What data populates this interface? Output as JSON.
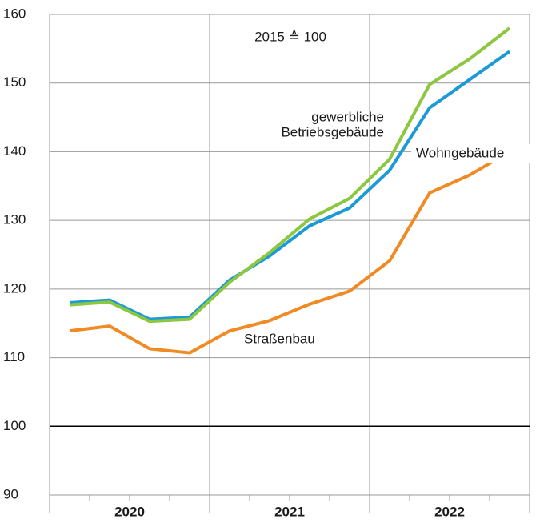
{
  "chart_data": {
    "type": "line",
    "annotation": "2015 ≙ 100",
    "categories": [
      null,
      null,
      null,
      null,
      null,
      null,
      null,
      null,
      null,
      null,
      null,
      null
    ],
    "years": [
      "2020",
      "2021",
      "2022"
    ],
    "ylim": [
      90,
      160
    ],
    "yticks": [
      90,
      100,
      110,
      120,
      130,
      140,
      150,
      160
    ],
    "baseline": 100,
    "grid": true,
    "series": [
      {
        "name": "Straßenbau",
        "color": "#f08a24",
        "values": [
          113.9,
          114.6,
          111.3,
          110.7,
          113.9,
          115.4,
          117.8,
          119.7,
          124.1,
          134.0,
          136.6,
          140.0
        ]
      },
      {
        "name": "Wohngebäude",
        "color": "#1b9ad6",
        "values": [
          118.0,
          118.4,
          115.6,
          115.9,
          121.3,
          124.8,
          129.2,
          131.8,
          137.3,
          146.4,
          150.5,
          154.6
        ]
      },
      {
        "label_lines": [
          "gewerbliche",
          "Betriebsgebäude"
        ],
        "color": "#8dc63f",
        "values": [
          117.7,
          118.1,
          115.3,
          115.6,
          121.0,
          125.3,
          130.2,
          133.2,
          138.9,
          149.8,
          153.5,
          158.0
        ]
      }
    ]
  }
}
